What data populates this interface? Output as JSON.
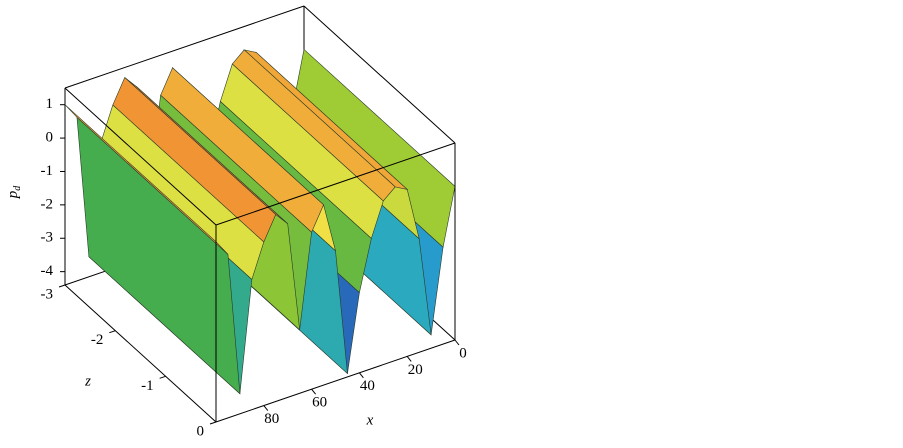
{
  "chart_data": {
    "type": "surface3d",
    "ylabel": "p",
    "ylabel_sub": "d",
    "xlabel": "x",
    "zlabel": "z",
    "x": [
      0,
      5,
      10,
      15,
      20,
      25,
      30,
      35,
      40,
      45,
      50,
      55,
      60,
      65,
      70,
      75,
      80,
      85,
      90,
      95,
      100
    ],
    "values": [
      0.2,
      -1.5,
      -4,
      -1,
      0.6,
      0.8,
      0.5,
      -0.5,
      -2,
      -4.3,
      -0.5,
      1,
      0.3,
      -2.5,
      0.8,
      1.2,
      0.5,
      -0.5,
      -3.8,
      0.5,
      1
    ],
    "xlim": [
      0,
      100
    ],
    "xticks": [
      0,
      20,
      40,
      60,
      80
    ],
    "zlim": [
      -3,
      0
    ],
    "zticks": [
      -3,
      -2,
      -1,
      0
    ],
    "ylim": [
      -4.4,
      1.5
    ],
    "yticks": [
      1,
      0,
      -1,
      -2,
      -3,
      -4
    ]
  }
}
